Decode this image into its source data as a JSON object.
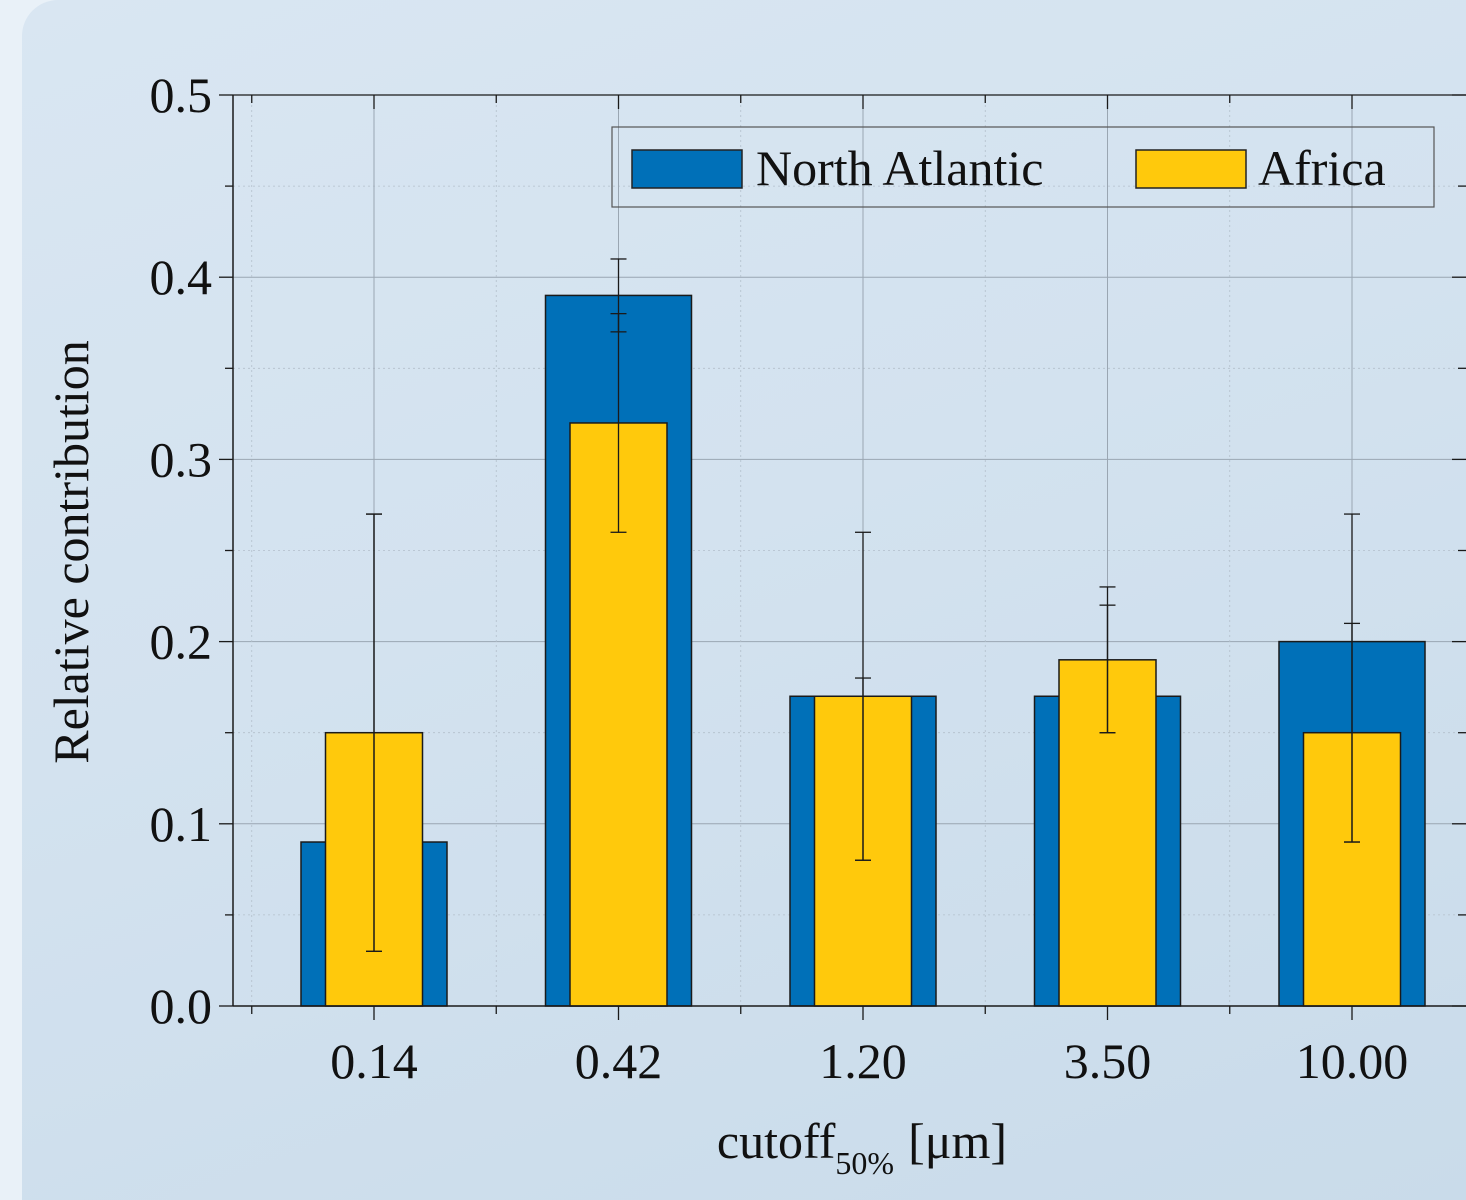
{
  "chart_data": {
    "type": "bar",
    "xlabel": "cutoff",
    "xlabel_subscript": "50%",
    "xlabel_unit": "[μm]",
    "ylabel": "Relative contribution",
    "categories": [
      "0.14",
      "0.42",
      "1.20",
      "3.50",
      "10.00"
    ],
    "ylim": [
      0.0,
      0.5
    ],
    "yticks": [
      "0.0",
      "0.1",
      "0.2",
      "0.3",
      "0.4",
      "0.5"
    ],
    "grid": true,
    "legend_position": "top-right",
    "series": [
      {
        "name": "North Atlantic",
        "color": "#0070b8",
        "values": [
          0.09,
          0.39,
          0.17,
          0.17,
          0.2
        ],
        "err_low": [
          0.03,
          0.37,
          0.08,
          0.15,
          0.09
        ],
        "err_high": [
          0.27,
          0.41,
          0.26,
          0.23,
          0.27
        ]
      },
      {
        "name": "Africa",
        "color": "#ffc90c",
        "values": [
          0.15,
          0.32,
          0.17,
          0.19,
          0.15
        ],
        "err_low": [
          0.03,
          0.26,
          0.08,
          0.15,
          0.09
        ],
        "err_high": [
          0.27,
          0.38,
          0.18,
          0.22,
          0.21
        ]
      }
    ]
  }
}
